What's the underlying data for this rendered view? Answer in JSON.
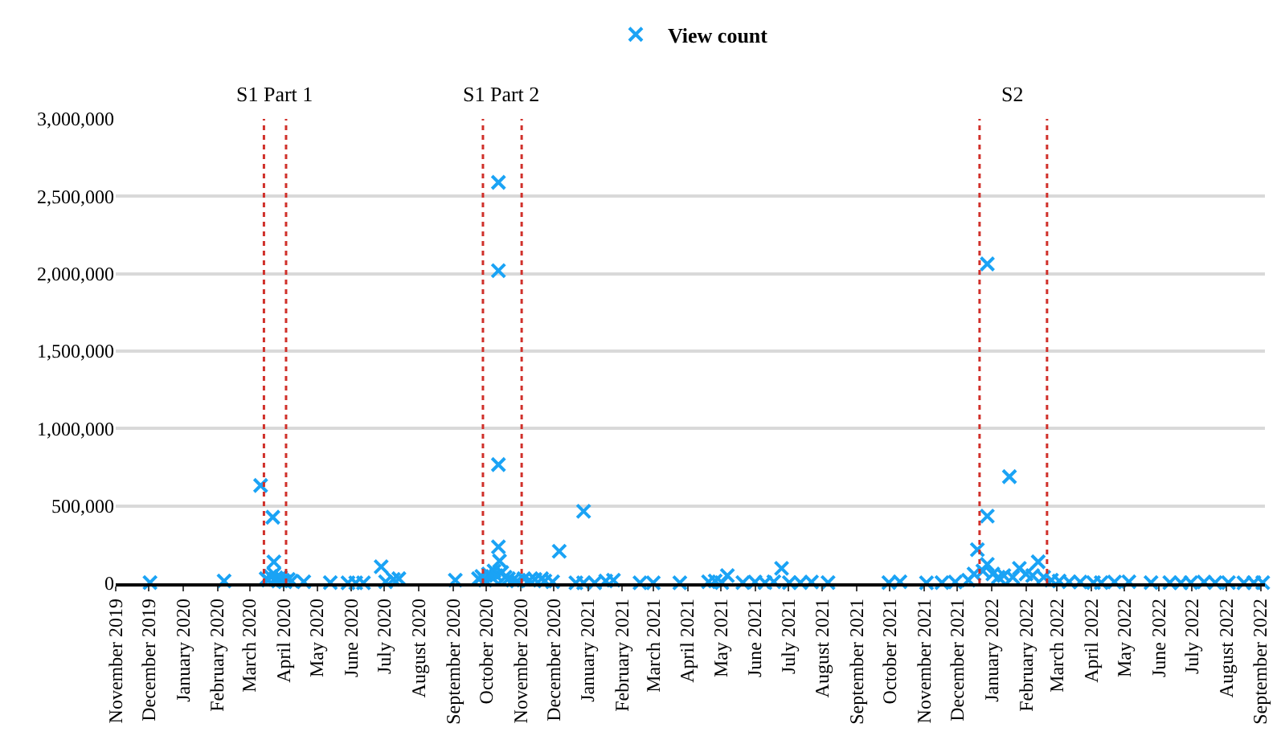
{
  "chart_data": {
    "type": "scatter",
    "marker": "cross",
    "legend": "top",
    "grid": "y",
    "ylim": [
      0,
      3000000
    ],
    "yticks": [
      0,
      {
        "value": 500000,
        "label": "500,000"
      },
      {
        "value": 1000000,
        "label": "1,000,000"
      },
      {
        "value": 1500000,
        "label": "1,500,000"
      },
      {
        "value": 2000000,
        "label": "2,000,000"
      },
      {
        "value": 2500000,
        "label": "2,500,000"
      },
      {
        "value": 3000000,
        "label": "3,000,000"
      }
    ],
    "xlim": [
      "2019-11-01",
      "2022-09-05"
    ],
    "xticks": [
      {
        "value": "2019-11-01",
        "label": "November 2019"
      },
      {
        "value": "2019-12-01",
        "label": "December 2019"
      },
      {
        "value": "2020-01-01",
        "label": "January 2020"
      },
      {
        "value": "2020-02-01",
        "label": "February 2020"
      },
      {
        "value": "2020-03-01",
        "label": "March 2020"
      },
      {
        "value": "2020-04-01",
        "label": "April 2020"
      },
      {
        "value": "2020-05-01",
        "label": "May 2020"
      },
      {
        "value": "2020-06-01",
        "label": "June 2020"
      },
      {
        "value": "2020-07-01",
        "label": "July 2020"
      },
      {
        "value": "2020-08-01",
        "label": "August 2020"
      },
      {
        "value": "2020-09-01",
        "label": "September 2020"
      },
      {
        "value": "2020-10-01",
        "label": "October 2020"
      },
      {
        "value": "2020-11-01",
        "label": "November 2020"
      },
      {
        "value": "2020-12-01",
        "label": "December 2020"
      },
      {
        "value": "2021-01-01",
        "label": "January 2021"
      },
      {
        "value": "2021-02-01",
        "label": "February 2021"
      },
      {
        "value": "2021-03-01",
        "label": "March 2021"
      },
      {
        "value": "2021-04-01",
        "label": "April 2021"
      },
      {
        "value": "2021-05-01",
        "label": "May 2021"
      },
      {
        "value": "2021-06-01",
        "label": "June 2021"
      },
      {
        "value": "2021-07-01",
        "label": "July 2021"
      },
      {
        "value": "2021-08-01",
        "label": "August 2021"
      },
      {
        "value": "2021-09-01",
        "label": "September 2021"
      },
      {
        "value": "2021-10-01",
        "label": "October 2021"
      },
      {
        "value": "2021-11-01",
        "label": "November 2021"
      },
      {
        "value": "2021-12-01",
        "label": "December 2021"
      },
      {
        "value": "2022-01-01",
        "label": "January 2022"
      },
      {
        "value": "2022-02-01",
        "label": "February 2022"
      },
      {
        "value": "2022-03-01",
        "label": "March 2022"
      },
      {
        "value": "2022-04-01",
        "label": "April 2022"
      },
      {
        "value": "2022-05-01",
        "label": "May 2022"
      },
      {
        "value": "2022-06-01",
        "label": "June 2022"
      },
      {
        "value": "2022-07-01",
        "label": "July 2022"
      },
      {
        "value": "2022-08-01",
        "label": "August 2022"
      },
      {
        "value": "2022-09-01",
        "label": "September 2022"
      }
    ],
    "ref_lines": [
      {
        "axis": "x",
        "value": "2020-03-14",
        "label": "S1 Part 1",
        "color": "#d0302a",
        "line_style": "dotted"
      },
      {
        "axis": "x",
        "value": "2020-04-03",
        "label": null,
        "color": "#d0302a",
        "line_style": "dotted"
      },
      {
        "axis": "x",
        "value": "2020-09-28",
        "label": "S1 Part 2",
        "color": "#d0302a",
        "line_style": "dotted"
      },
      {
        "axis": "x",
        "value": "2020-11-02",
        "label": null,
        "color": "#d0302a",
        "line_style": "dotted"
      },
      {
        "axis": "x",
        "value": "2021-12-21",
        "label": "S2",
        "color": "#d0302a",
        "line_style": "dotted"
      },
      {
        "axis": "x",
        "value": "2022-02-20",
        "label": null,
        "color": "#d0302a",
        "line_style": "dotted"
      }
    ],
    "series": [
      {
        "name": "View count",
        "color": "#1aa3f5",
        "x": [
          "2019-12-02",
          "2020-02-07",
          "2020-03-11",
          "2020-03-16",
          "2020-03-18",
          "2020-03-20",
          "2020-03-22",
          "2020-03-23",
          "2020-03-23",
          "2020-03-24",
          "2020-03-25",
          "2020-03-27",
          "2020-03-29",
          "2020-03-31",
          "2020-04-02",
          "2020-04-05",
          "2020-04-08",
          "2020-04-19",
          "2020-05-13",
          "2020-05-29",
          "2020-06-05",
          "2020-06-12",
          "2020-06-28",
          "2020-07-02",
          "2020-07-09",
          "2020-07-14",
          "2020-09-03",
          "2020-09-24",
          "2020-09-27",
          "2020-09-30",
          "2020-10-03",
          "2020-10-06",
          "2020-10-08",
          "2020-10-10",
          "2020-10-12",
          "2020-10-12",
          "2020-10-12",
          "2020-10-12",
          "2020-10-13",
          "2020-10-15",
          "2020-10-18",
          "2020-10-21",
          "2020-10-25",
          "2020-10-29",
          "2020-11-04",
          "2020-11-09",
          "2020-11-14",
          "2020-11-20",
          "2020-11-23",
          "2020-11-30",
          "2020-12-06",
          "2020-12-21",
          "2020-12-28",
          "2020-12-28",
          "2021-01-07",
          "2021-01-17",
          "2021-01-24",
          "2021-02-17",
          "2021-03-01",
          "2021-03-25",
          "2021-04-20",
          "2021-04-26",
          "2021-05-02",
          "2021-05-07",
          "2021-05-21",
          "2021-06-01",
          "2021-06-10",
          "2021-06-18",
          "2021-06-25",
          "2021-07-02",
          "2021-07-12",
          "2021-07-22",
          "2021-08-06",
          "2021-09-30",
          "2021-10-10",
          "2021-11-03",
          "2021-11-17",
          "2021-11-29",
          "2021-12-11",
          "2021-12-16",
          "2021-12-19",
          "2021-12-24",
          "2021-12-28",
          "2021-12-28",
          "2021-12-28",
          "2022-01-02",
          "2022-01-07",
          "2022-01-12",
          "2022-01-17",
          "2022-01-20",
          "2022-01-26",
          "2022-02-01",
          "2022-02-07",
          "2022-02-12",
          "2022-02-17",
          "2022-02-24",
          "2022-03-03",
          "2022-03-12",
          "2022-03-22",
          "2022-04-03",
          "2022-04-10",
          "2022-04-22",
          "2022-05-05",
          "2022-05-25",
          "2022-06-11",
          "2022-06-21",
          "2022-06-30",
          "2022-07-12",
          "2022-07-22",
          "2022-08-03",
          "2022-08-17",
          "2022-08-26",
          "2022-09-03"
        ],
        "values": [
          5000,
          15000,
          632000,
          30000,
          20000,
          45000,
          427000,
          138000,
          60000,
          25000,
          35000,
          15000,
          40000,
          20000,
          10000,
          25000,
          15000,
          10000,
          5000,
          3000,
          3000,
          3000,
          107000,
          10000,
          25000,
          30000,
          20000,
          30000,
          45000,
          20000,
          60000,
          40000,
          80000,
          50000,
          2590000,
          2020000,
          767000,
          236000,
          144000,
          70000,
          40000,
          30000,
          20000,
          15000,
          30000,
          20000,
          25000,
          30000,
          15000,
          10000,
          207000,
          3000,
          465000,
          3000,
          3000,
          15000,
          20000,
          3000,
          3000,
          3000,
          10000,
          15000,
          5000,
          50000,
          5000,
          8000,
          5000,
          10000,
          97000,
          5000,
          5000,
          8000,
          5000,
          5000,
          10000,
          3000,
          5000,
          8000,
          20000,
          60000,
          217000,
          80000,
          2063000,
          434000,
          123000,
          60000,
          40000,
          50000,
          689000,
          40000,
          97000,
          60000,
          50000,
          139000,
          40000,
          20000,
          15000,
          10000,
          8000,
          5000,
          5000,
          8000,
          10000,
          5000,
          5000,
          3000,
          5000,
          8000,
          5000,
          5000,
          3000,
          5000,
          5000
        ]
      }
    ]
  }
}
